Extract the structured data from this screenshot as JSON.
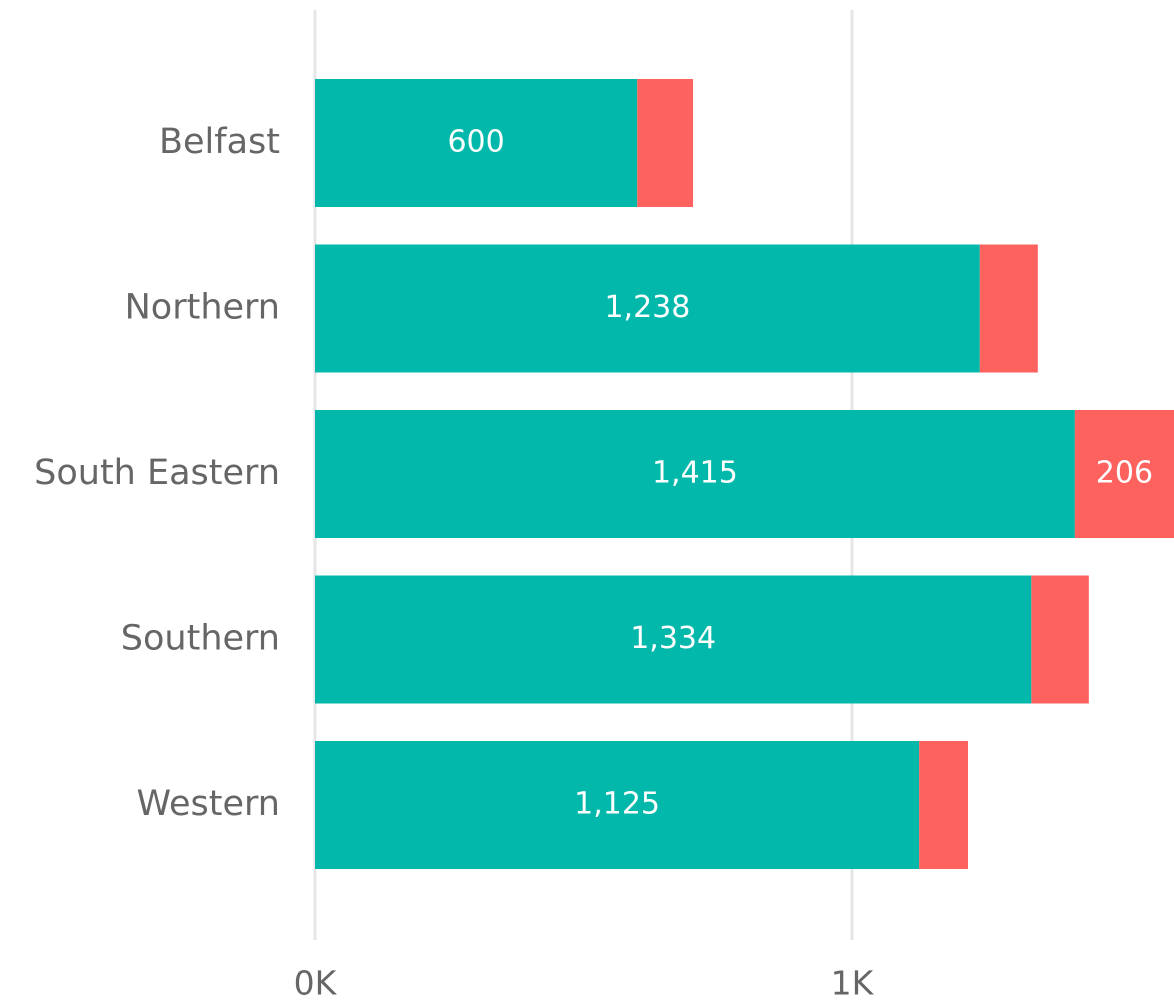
{
  "chart_data": {
    "type": "stacked_barh",
    "categories": [
      "Belfast",
      "Northern",
      "South Eastern",
      "Southern",
      "Western"
    ],
    "series": [
      {
        "color": "#01B8AA",
        "values": [
          600,
          1238,
          1415,
          1334,
          1125
        ],
        "value_labels": [
          "600",
          "1,238",
          "1,415",
          "1,334",
          "1,125"
        ]
      },
      {
        "color": "#FD625E",
        "values": [
          104,
          108,
          206,
          107,
          91
        ],
        "value_labels": [
          null,
          null,
          "206",
          null,
          null
        ]
      }
    ],
    "xlim": [
      0,
      1600
    ],
    "xticks": [
      {
        "value": 0,
        "label": "0K"
      },
      {
        "value": 1000,
        "label": "1K"
      }
    ],
    "grid": true
  }
}
